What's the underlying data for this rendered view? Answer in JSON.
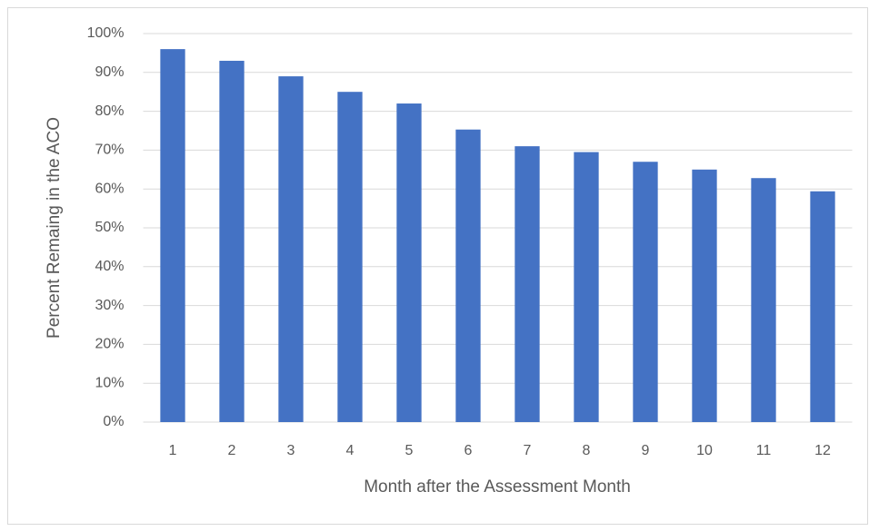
{
  "chart_data": {
    "type": "bar",
    "xlabel": "Month after the Assessment Month",
    "ylabel": "Percent Remaing in the ACO",
    "categories": [
      "1",
      "2",
      "3",
      "4",
      "5",
      "6",
      "7",
      "8",
      "9",
      "10",
      "11",
      "12"
    ],
    "values": [
      96,
      93,
      89,
      85,
      82,
      75.3,
      71,
      69.5,
      67,
      65,
      62.8,
      59.4
    ],
    "color": "#4472c4",
    "ylim": [
      0,
      100
    ],
    "yticks": [
      {
        "value": 0,
        "label": "0%"
      },
      {
        "value": 10,
        "label": "10%"
      },
      {
        "value": 20,
        "label": "20%"
      },
      {
        "value": 30,
        "label": "30%"
      },
      {
        "value": 40,
        "label": "40%"
      },
      {
        "value": 50,
        "label": "50%"
      },
      {
        "value": 60,
        "label": "60%"
      },
      {
        "value": 70,
        "label": "70%"
      },
      {
        "value": 80,
        "label": "80%"
      },
      {
        "value": 90,
        "label": "90%"
      },
      {
        "value": 100,
        "label": "100%"
      }
    ],
    "grid": true
  }
}
